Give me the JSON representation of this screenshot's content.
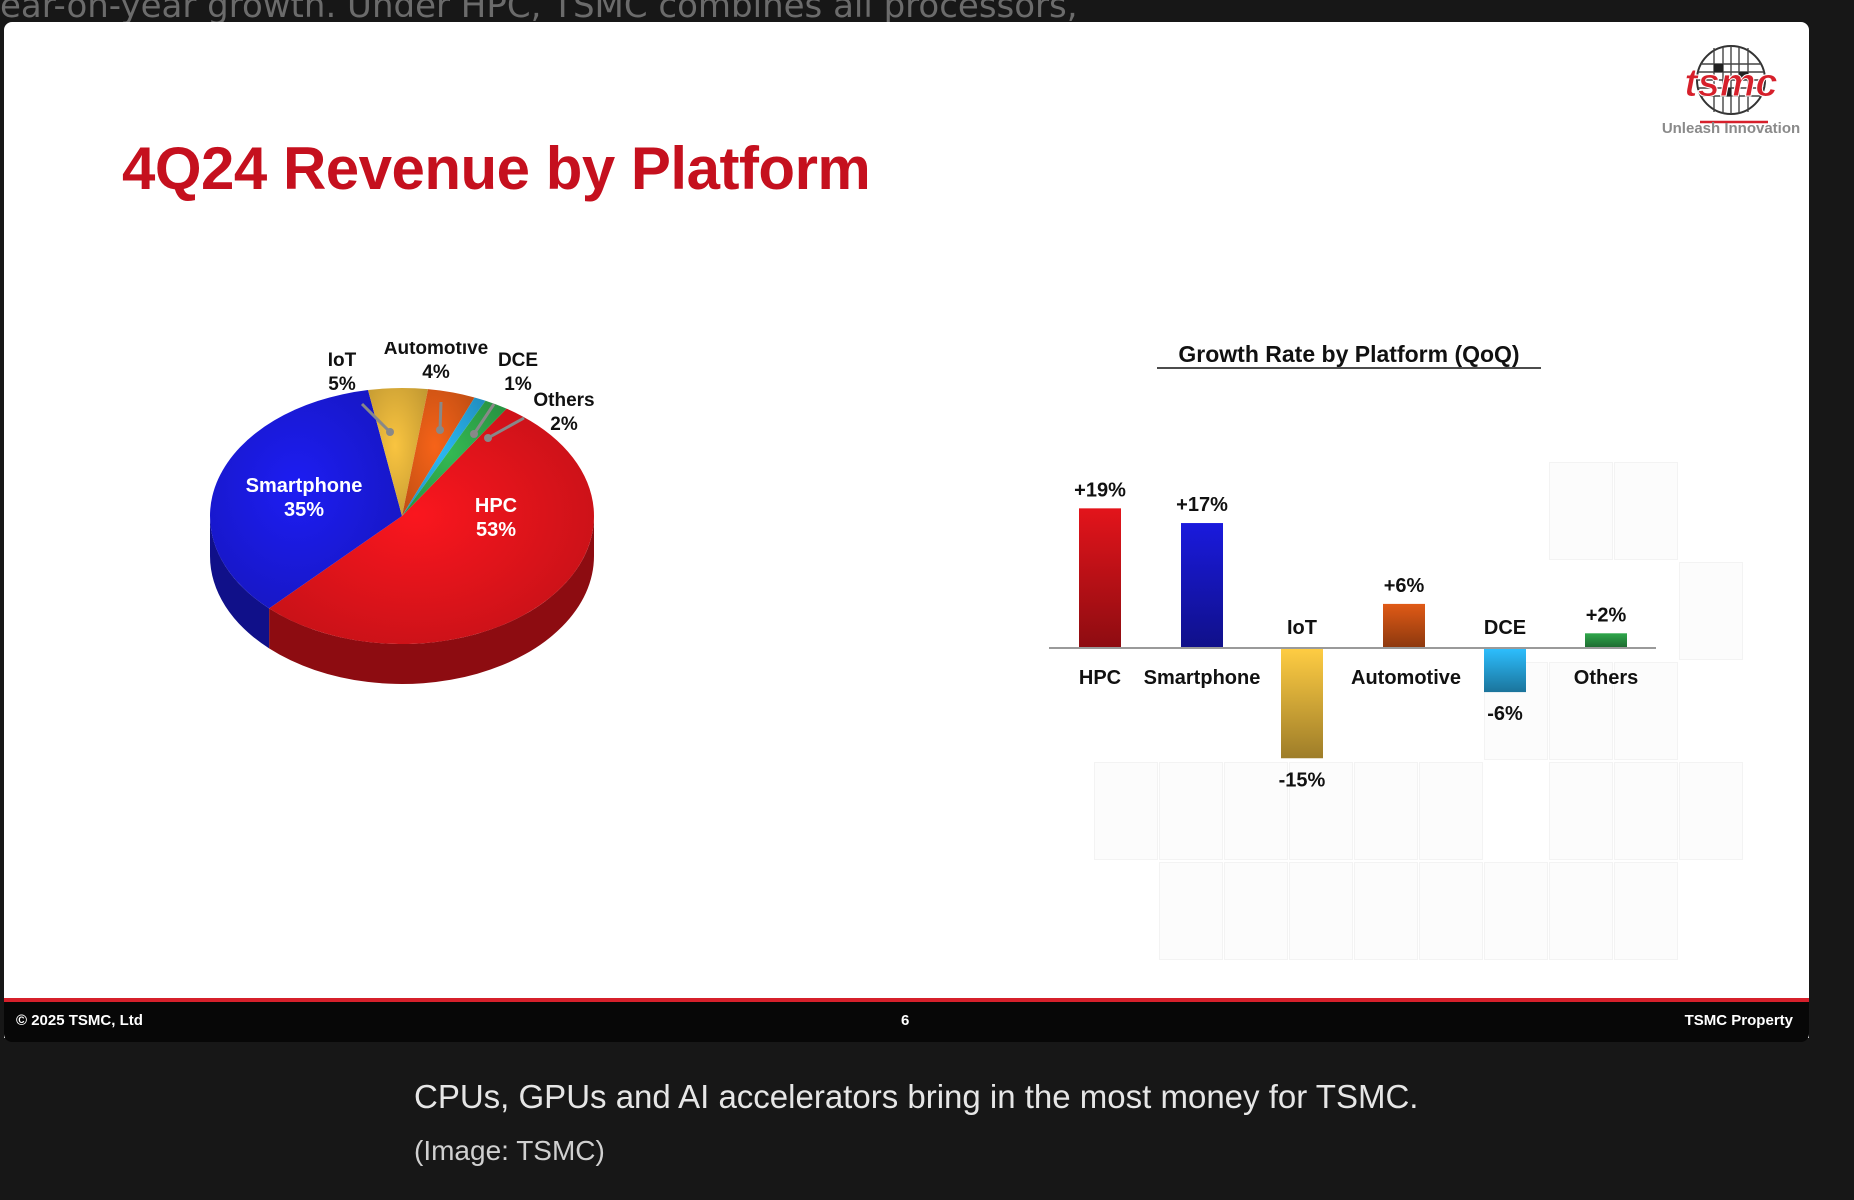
{
  "article": {
    "background_text": "ear-on-year growth. Under HPC, TSMC combines all processors,",
    "caption": "CPUs, GPUs and AI accelerators bring in the most money for TSMC.",
    "credit": "(Image: TSMC)"
  },
  "slide": {
    "title": "4Q24 Revenue by Platform",
    "logo_text": "tsmc",
    "tagline": "Unleash Innovation",
    "footer_copyright": "© 2025 TSMC, Ltd",
    "footer_page": "6",
    "footer_right": "TSMC Property"
  },
  "colors": {
    "brand_red": "#c5101e",
    "hpc": "#e3141b",
    "smartphone": "#1a1add",
    "iot": "#e2b23a",
    "automotive": "#e05a16",
    "dce": "#27a6de",
    "others": "#2fa84b"
  },
  "chart_data": [
    {
      "type": "pie",
      "title": "",
      "categories": [
        "HPC",
        "Smartphone",
        "IoT",
        "Automotive",
        "DCE",
        "Others"
      ],
      "values": [
        53,
        35,
        5,
        4,
        1,
        2
      ],
      "labels": [
        "53%",
        "35%",
        "5%",
        "4%",
        "1%",
        "2%"
      ]
    },
    {
      "type": "bar",
      "title": "Growth Rate by Platform (QoQ)",
      "categories": [
        "HPC",
        "Smartphone",
        "IoT",
        "Automotive",
        "DCE",
        "Others"
      ],
      "values": [
        19,
        17,
        -15,
        6,
        -6,
        2
      ],
      "labels": [
        "+19%",
        "+17%",
        "-15%",
        "+6%",
        "-6%",
        "+2%"
      ],
      "ylim": [
        -15,
        19
      ]
    }
  ]
}
